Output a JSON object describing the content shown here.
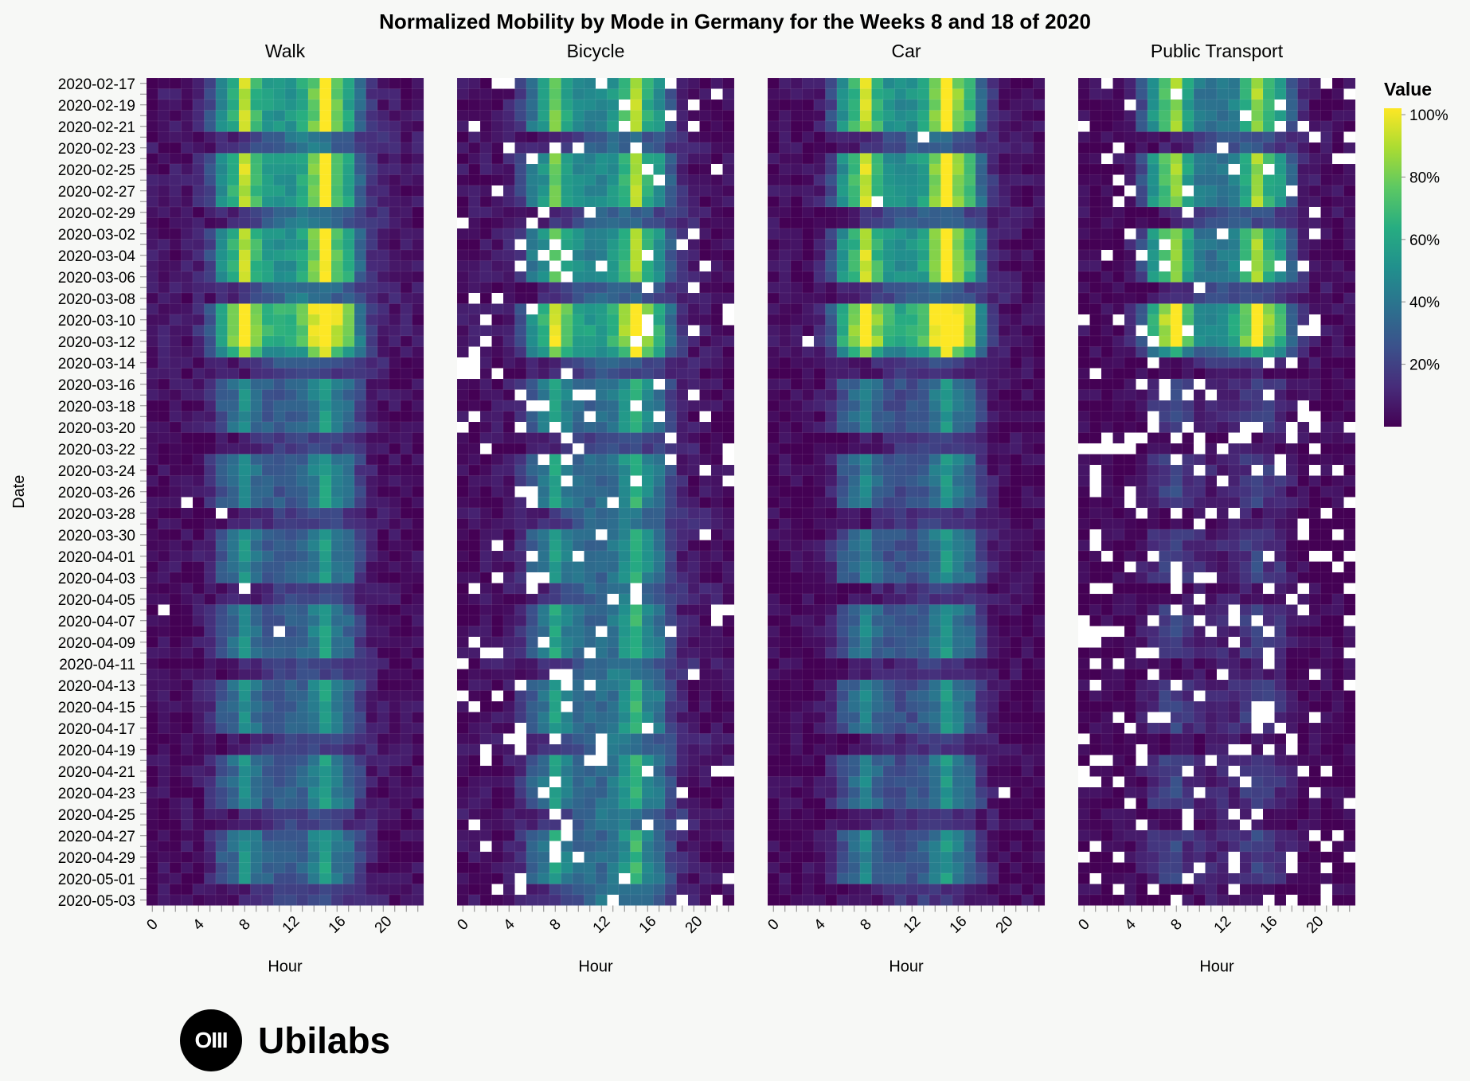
{
  "chart_data": {
    "type": "heatmap",
    "title": "Normalized Mobility by Mode in Germany for the Weeks 8 and 18 of 2020",
    "xlabel": "Hour",
    "ylabel": "Date",
    "panels": [
      "Walk",
      "Bicycle",
      "Car",
      "Public Transport"
    ],
    "x_ticks": [
      0,
      4,
      8,
      12,
      16,
      20
    ],
    "x_range": [
      0,
      23
    ],
    "date_range": [
      "2020-02-17",
      "2020-05-03"
    ],
    "date_tick_labels": [
      "2020-02-17",
      "2020-02-19",
      "2020-02-21",
      "2020-02-23",
      "2020-02-25",
      "2020-02-27",
      "2020-02-29",
      "2020-03-02",
      "2020-03-04",
      "2020-03-06",
      "2020-03-08",
      "2020-03-10",
      "2020-03-12",
      "2020-03-14",
      "2020-03-16",
      "2020-03-18",
      "2020-03-20",
      "2020-03-22",
      "2020-03-24",
      "2020-03-26",
      "2020-03-28",
      "2020-03-30",
      "2020-04-01",
      "2020-04-03",
      "2020-04-05",
      "2020-04-07",
      "2020-04-09",
      "2020-04-11",
      "2020-04-13",
      "2020-04-15",
      "2020-04-17",
      "2020-04-19",
      "2020-04-21",
      "2020-04-23",
      "2020-04-25",
      "2020-04-27",
      "2020-04-29",
      "2020-05-01",
      "2020-05-03"
    ],
    "legend": {
      "title": "Value",
      "ticks": [
        "20%",
        "40%",
        "60%",
        "80%",
        "100%"
      ],
      "colors": [
        "#440154",
        "#472c7a",
        "#3b518b",
        "#2c718e",
        "#21908d",
        "#27ad81",
        "#5cc863",
        "#aadc32",
        "#fde725"
      ],
      "placement": "right"
    },
    "value_range": [
      0,
      1
    ],
    "note_values": "Hourly normalized values 0-1 per mode; peaks around 7-8 and 15-17 on weekdays, lower after mid-March. Blank cells = missing data."
  },
  "branding": {
    "logo_mark": "OIII",
    "logo_text": "Ubilabs"
  }
}
